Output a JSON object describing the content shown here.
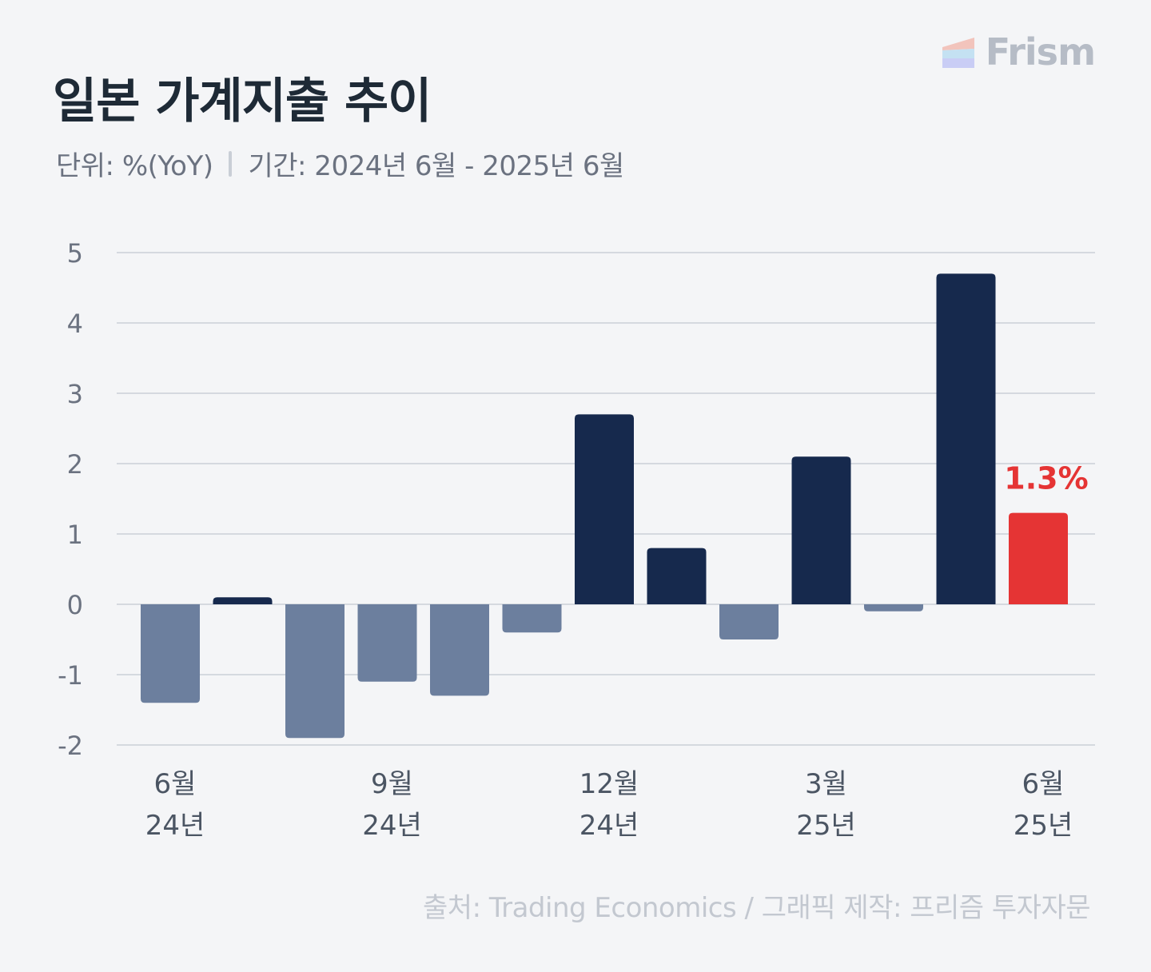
{
  "header": {
    "title": "일본 가계지출 추이",
    "unit": "단위: %(YoY)",
    "period": "기간: 2024년 6월 - 2025년 6월"
  },
  "brand": {
    "name": "Frism"
  },
  "footer": {
    "source": "출처: Trading Economics / 그래픽 제작: 프리즘 투자자문"
  },
  "colors": {
    "positive": "#16294d",
    "negative": "#6c7f9e",
    "highlight": "#e53434",
    "grid": "#d5d9df"
  },
  "chart_data": {
    "type": "bar",
    "categories": [
      "2024-06",
      "2024-07",
      "2024-08",
      "2024-09",
      "2024-10",
      "2024-11",
      "2024-12",
      "2025-01",
      "2025-02",
      "2025-03",
      "2025-04",
      "2025-05",
      "2025-06"
    ],
    "values": [
      -1.4,
      0.1,
      -1.9,
      -1.1,
      -1.3,
      -0.4,
      2.7,
      0.8,
      -0.5,
      2.1,
      -0.1,
      4.7,
      1.3
    ],
    "highlight_index": 12,
    "highlight_label": "1.3%",
    "ylim": [
      -2,
      5
    ],
    "yticks": [
      5,
      4,
      3,
      2,
      1,
      0,
      -1,
      -2
    ],
    "xticks": [
      {
        "index": 0,
        "line1": "6월",
        "line2": "24년"
      },
      {
        "index": 3,
        "line1": "9월",
        "line2": "24년"
      },
      {
        "index": 6,
        "line1": "12월",
        "line2": "24년"
      },
      {
        "index": 9,
        "line1": "3월",
        "line2": "25년"
      },
      {
        "index": 12,
        "line1": "6월",
        "line2": "25년"
      }
    ],
    "grid": true,
    "legend": "none"
  }
}
